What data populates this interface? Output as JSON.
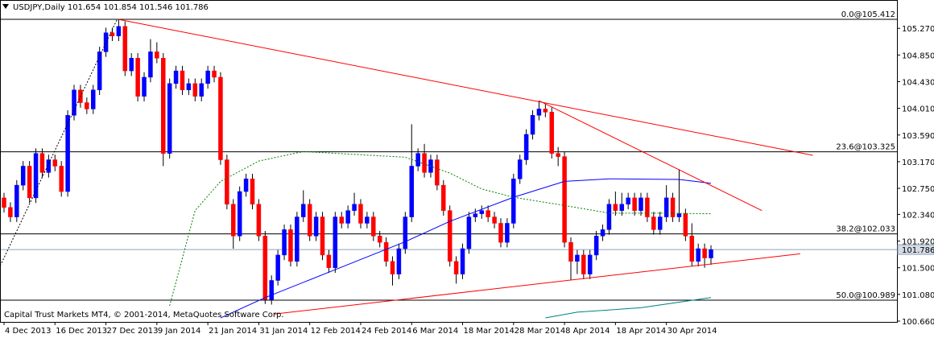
{
  "chart_data": {
    "type": "candlestick",
    "title": "USDJPY,Daily",
    "footer": "Capital Trust Markets MT4, © 2001-2014, MetaQuotes Software Corp.",
    "categories": [
      "4 Dec 2013",
      null,
      null,
      null,
      null,
      null,
      null,
      null,
      "16 Dec 2013",
      null,
      null,
      null,
      null,
      null,
      null,
      null,
      "27 Dec 2013",
      null,
      null,
      null,
      null,
      null,
      null,
      null,
      "9 Jan 2014",
      null,
      null,
      null,
      null,
      null,
      null,
      null,
      "21 Jan 2014",
      null,
      null,
      null,
      null,
      null,
      null,
      null,
      "31 Jan 2014",
      null,
      null,
      null,
      null,
      null,
      null,
      null,
      "12 Feb 2014",
      null,
      null,
      null,
      null,
      null,
      null,
      null,
      "24 Feb 2014",
      null,
      null,
      null,
      null,
      null,
      null,
      null,
      "6 Mar 2014",
      null,
      null,
      null,
      null,
      null,
      null,
      null,
      "18 Mar 2014",
      null,
      null,
      null,
      null,
      null,
      null,
      null,
      "28 Mar 2014",
      null,
      null,
      null,
      null,
      null,
      null,
      null,
      "8 Apr 2014",
      null,
      null,
      null,
      null,
      null,
      null,
      null,
      "18 Apr 2014",
      null,
      null,
      null,
      null,
      null,
      null,
      null,
      "30 Apr 2014",
      null,
      null,
      null,
      null,
      null,
      null,
      null
    ],
    "open": [
      102.6,
      102.45,
      102.3,
      102.8,
      103.1,
      102.6,
      103.3,
      103,
      103.2,
      103.1,
      102.7,
      103.9,
      104.3,
      104.1,
      104,
      104.3,
      104.9,
      105.2,
      105.15,
      105.3,
      104.6,
      104.8,
      104.2,
      104.5,
      104.9,
      104.8,
      103.3,
      104.4,
      104.6,
      104.3,
      104.4,
      104.2,
      104.4,
      104.6,
      104.5,
      103.2,
      102.5,
      102,
      102.7,
      102.9,
      102.5,
      102,
      101,
      101.3,
      101.7,
      102.1,
      101.6,
      102.3,
      102.5,
      102,
      102.3,
      101.7,
      101.5,
      102.3,
      102.2,
      102.4,
      102.5,
      102.2,
      102.3,
      102,
      101.9,
      101.6,
      101.4,
      101.8,
      102.3,
      103.1,
      103.3,
      103,
      103.2,
      102.8,
      102.4,
      101.6,
      101.4,
      101.8,
      102.3,
      102.35,
      102.4,
      102.3,
      102.2,
      101.9,
      102.2,
      102.9,
      103.2,
      103.6,
      103.9,
      104,
      103.95,
      103.3,
      103.25,
      101.9,
      101.6,
      101.7,
      101.4,
      101.7,
      102,
      102.1,
      102.5,
      102.4,
      102.5,
      102.6,
      102.4,
      102.6,
      102.3,
      102.1,
      102.3,
      102.6,
      102.3,
      102.35,
      102,
      101.6,
      101.8,
      101.654
    ],
    "high": [
      102.68,
      102.53,
      102.88,
      103.18,
      103.18,
      103.38,
      103.38,
      103.28,
      103.28,
      103.18,
      103.98,
      104.38,
      104.38,
      104.18,
      104.38,
      104.98,
      105.28,
      105.28,
      105.41,
      105.38,
      104.88,
      104.88,
      104.58,
      105.1,
      105.05,
      104.88,
      104.48,
      104.68,
      104.68,
      104.48,
      104.48,
      104.48,
      104.68,
      104.68,
      104.58,
      103.28,
      102.58,
      102.78,
      102.98,
      102.98,
      102.58,
      102.08,
      101.38,
      101.78,
      102.18,
      102.18,
      102.38,
      102.72,
      102.58,
      102.38,
      102.38,
      101.78,
      102.38,
      102.38,
      102.48,
      102.68,
      102.58,
      102.38,
      102.38,
      102.08,
      101.98,
      101.68,
      101.88,
      102.38,
      103.76,
      103.38,
      103.45,
      103.28,
      103.28,
      102.88,
      102.48,
      101.68,
      101.88,
      102.38,
      102.43,
      102.48,
      102.48,
      102.38,
      102.28,
      102.28,
      102.98,
      103.28,
      103.68,
      103.98,
      104.13,
      104.1,
      104.03,
      103.4,
      103.33,
      101.98,
      101.78,
      101.78,
      101.78,
      102.08,
      102.18,
      102.58,
      102.7,
      102.68,
      102.68,
      102.68,
      102.68,
      102.68,
      102.38,
      102.38,
      102.8,
      102.68,
      103.05,
      102.43,
      102.2,
      101.88,
      101.88,
      101.854
    ],
    "low": [
      102.37,
      102.22,
      102.22,
      102.72,
      102.52,
      102.52,
      102.92,
      102.92,
      103.02,
      102.62,
      102.62,
      103.82,
      104.02,
      103.92,
      103.92,
      104.22,
      104.82,
      105.07,
      105.07,
      104.52,
      104.52,
      104.12,
      104.12,
      104.42,
      104.72,
      103.1,
      103.22,
      104.32,
      104.22,
      104.22,
      104.12,
      104.12,
      104.32,
      104.42,
      103.12,
      102.42,
      101.8,
      101.92,
      102.62,
      102.42,
      101.92,
      100.93,
      100.92,
      101.22,
      101.62,
      101.52,
      101.52,
      102.22,
      101.92,
      101.92,
      101.62,
      101.42,
      101.42,
      102.12,
      102.12,
      102.32,
      102.12,
      102.12,
      101.92,
      101.82,
      101.52,
      101.22,
      101.32,
      101.72,
      102.22,
      103.02,
      102.92,
      102.92,
      102.72,
      102.32,
      101.52,
      101.25,
      101.32,
      101.72,
      102.22,
      102.27,
      102.22,
      102.12,
      101.82,
      101.82,
      102.12,
      102.82,
      103.12,
      103.52,
      103.82,
      103.87,
      103.22,
      103.1,
      101.82,
      101.3,
      101.4,
      101.32,
      101.32,
      101.62,
      101.92,
      102.02,
      102.32,
      102.32,
      102.42,
      102.32,
      102.32,
      102.22,
      102.02,
      102.02,
      102.22,
      102.22,
      102.22,
      101.92,
      101.52,
      101.52,
      101.5,
      101.546
    ],
    "close": [
      102.45,
      102.3,
      102.8,
      103.1,
      102.6,
      103.3,
      103,
      103.2,
      103.1,
      102.7,
      103.9,
      104.3,
      104.1,
      104,
      104.3,
      104.9,
      105.2,
      105.15,
      105.3,
      104.6,
      104.8,
      104.2,
      104.5,
      104.9,
      104.8,
      103.3,
      104.4,
      104.6,
      104.3,
      104.4,
      104.2,
      104.4,
      104.6,
      104.5,
      103.2,
      102.5,
      102,
      102.7,
      102.9,
      102.5,
      102,
      101,
      101.3,
      101.7,
      102.1,
      101.6,
      102.3,
      102.5,
      102,
      102.3,
      101.7,
      101.5,
      102.3,
      102.2,
      102.4,
      102.5,
      102.2,
      102.3,
      102,
      101.9,
      101.6,
      101.4,
      101.8,
      102.3,
      103.1,
      103.3,
      103,
      103.2,
      102.8,
      102.4,
      101.6,
      101.4,
      101.8,
      102.3,
      102.35,
      102.4,
      102.3,
      102.2,
      101.9,
      102.2,
      102.9,
      103.2,
      103.6,
      103.9,
      104,
      103.95,
      103.3,
      103.25,
      101.9,
      101.6,
      101.7,
      101.4,
      101.7,
      102,
      102.1,
      102.5,
      102.4,
      102.5,
      102.6,
      102.4,
      102.6,
      102.3,
      102.1,
      102.3,
      102.6,
      102.3,
      102.35,
      102,
      101.6,
      101.8,
      101.654,
      101.786
    ],
    "up_color": "#0000ff",
    "down_color": "#ff0000",
    "ylim": [
      100.647,
      105.716
    ],
    "yticks": [
      {
        "value": 105.27,
        "label": "105.270"
      },
      {
        "value": 104.85,
        "label": "104.850"
      },
      {
        "value": 104.43,
        "label": "104.430"
      },
      {
        "value": 104.01,
        "label": "104.010"
      },
      {
        "value": 103.59,
        "label": "103.590"
      },
      {
        "value": 103.17,
        "label": "103.170"
      },
      {
        "value": 102.75,
        "label": "102.750"
      },
      {
        "value": 102.34,
        "label": "102.340"
      },
      {
        "value": 101.92,
        "label": "101.920"
      },
      {
        "value": 101.5,
        "label": "101.500"
      },
      {
        "value": 101.08,
        "label": "101.080"
      },
      {
        "value": 100.66,
        "label": "100.660"
      }
    ],
    "levels": [
      {
        "value": 105.412,
        "label": "0.0@105.412"
      },
      {
        "value": 103.325,
        "label": "23.6@103.325"
      },
      {
        "value": 102.033,
        "label": "38.2@102.033"
      },
      {
        "value": 100.989,
        "label": "50.0@100.989"
      }
    ],
    "lines": [
      {
        "color": "#008000",
        "dash": true,
        "x": [
          26,
          30,
          34,
          40,
          47,
          63,
          70,
          75,
          80,
          88,
          95,
          103,
          111
        ],
        "values": [
          100.9,
          102.4,
          102.86,
          103.18,
          103.33,
          103.24,
          102.99,
          102.74,
          102.61,
          102.48,
          102.36,
          102.36,
          102.35
        ]
      },
      {
        "color": "#0000ff",
        "dash": false,
        "x": [
          34,
          41,
          52,
          63,
          70,
          80,
          88,
          95,
          106,
          111
        ],
        "values": [
          100.71,
          101.03,
          101.47,
          101.91,
          102.23,
          102.61,
          102.86,
          102.9,
          102.89,
          102.83
        ]
      },
      {
        "color": "#008080",
        "dash": false,
        "x": [
          85,
          90,
          100,
          111
        ],
        "values": [
          100.71,
          100.8,
          100.87,
          101.03
        ]
      },
      {
        "color": "#000000",
        "dash": true,
        "x": [
          -0.6,
          17.7
        ],
        "values": [
          101.53,
          105.4
        ]
      },
      {
        "color": "#ff0000",
        "dash": false,
        "x": [
          18,
          127
        ],
        "values": [
          105.41,
          103.27
        ]
      },
      {
        "color": "#ff0000",
        "dash": false,
        "x": [
          84,
          119
        ],
        "values": [
          104.13,
          102.4
        ]
      },
      {
        "color": "#ff0000",
        "dash": false,
        "x": [
          42.4,
          125
        ],
        "values": [
          100.77,
          101.72
        ]
      }
    ]
  }
}
